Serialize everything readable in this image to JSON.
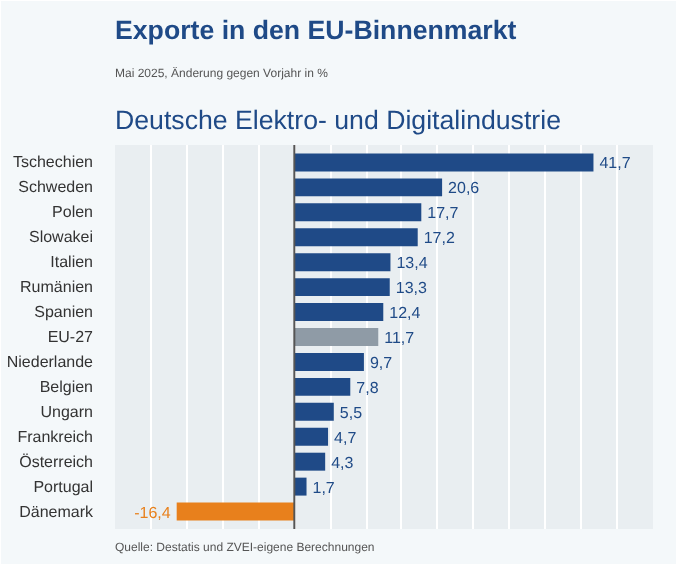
{
  "chart_data": {
    "type": "bar",
    "orientation": "horizontal",
    "title": "Exporte in den EU-Binnenmarkt",
    "subtitle": "Deutsche Elektro- und Digitalindustrie",
    "annotations": [
      "Mai 2025, Änderung gegen Vorjahr in %",
      "Quelle: Destatis und ZVEI-eigene Berechnungen"
    ],
    "categories": [
      "Tschechien",
      "Schweden",
      "Polen",
      "Slowakei",
      "Italien",
      "Rumänien",
      "Spanien",
      "EU-27",
      "Niederlande",
      "Belgien",
      "Ungarn",
      "Frankreich",
      "Österreich",
      "Portugal",
      "Dänemark"
    ],
    "values": [
      41.7,
      20.6,
      17.7,
      17.2,
      13.4,
      13.3,
      12.4,
      11.7,
      9.7,
      7.8,
      5.5,
      4.7,
      4.3,
      1.7,
      -16.4
    ],
    "value_labels": [
      "41,7",
      "20,6",
      "17,7",
      "17,2",
      "13,4",
      "13,3",
      "12,4",
      "11,7",
      "9,7",
      "7,8",
      "5,5",
      "4,7",
      "4,3",
      "1,7",
      "-16,4"
    ],
    "colors": [
      "#1f4a87",
      "#1f4a87",
      "#1f4a87",
      "#1f4a87",
      "#1f4a87",
      "#1f4a87",
      "#1f4a87",
      "#8f9ba6",
      "#1f4a87",
      "#1f4a87",
      "#1f4a87",
      "#1f4a87",
      "#1f4a87",
      "#1f4a87",
      "#e8801c"
    ],
    "xlim": [
      -25,
      50
    ],
    "xticks": [
      {
        "value": -20,
        "label": null
      },
      {
        "value": -15,
        "label": null
      },
      {
        "value": -10,
        "label": null
      },
      {
        "value": -5,
        "label": null
      },
      {
        "value": 0,
        "label": null
      },
      {
        "value": 5,
        "label": null
      },
      {
        "value": 10,
        "label": null
      },
      {
        "value": 15,
        "label": null
      },
      {
        "value": 20,
        "label": null
      },
      {
        "value": 25,
        "label": null
      },
      {
        "value": 30,
        "label": null
      },
      {
        "value": 35,
        "label": null
      },
      {
        "value": 40,
        "label": null
      },
      {
        "value": 45,
        "label": null
      }
    ],
    "grid": "x",
    "tick_labels": "y"
  }
}
